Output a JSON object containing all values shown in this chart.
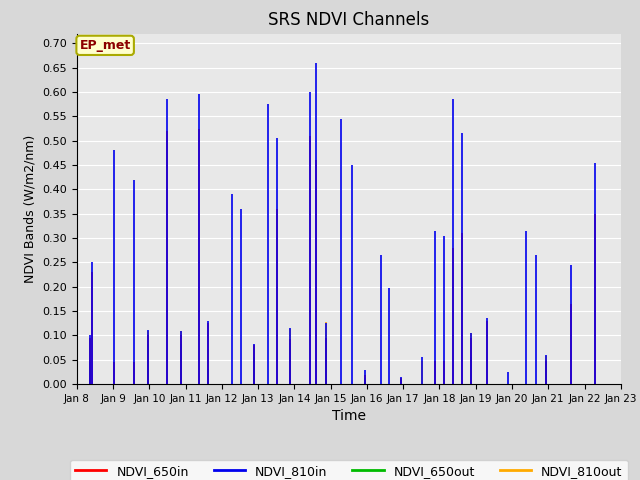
{
  "title": "SRS NDVI Channels",
  "xlabel": "Time",
  "ylabel": "NDVI Bands (W/m2/nm)",
  "ylim": [
    0.0,
    0.72
  ],
  "ylim_display": [
    0.0,
    0.7
  ],
  "yticks": [
    0.0,
    0.05,
    0.1,
    0.15,
    0.2,
    0.25,
    0.3,
    0.35,
    0.4,
    0.45,
    0.5,
    0.55,
    0.6,
    0.65,
    0.7
  ],
  "fig_bg_color": "#d8d8d8",
  "plot_bg_color": "#e8e8e8",
  "grid_color": "#ffffff",
  "annotation_text": "EP_met",
  "annotation_color": "#8b0000",
  "annotation_bg": "#ffffcc",
  "annotation_edge": "#aaaa00",
  "colors": {
    "NDVI_650in": "#ff0000",
    "NDVI_810in": "#0000ee",
    "NDVI_650out": "#00bb00",
    "NDVI_810out": "#ffaa00"
  },
  "spikes": [
    {
      "x": 8.37,
      "c650in": 0.095,
      "c810in": 0.1,
      "c650out": 0.045,
      "c810out": 0.092
    },
    {
      "x": 8.42,
      "c650in": 0.23,
      "c810in": 0.25,
      "c650out": 0.0,
      "c810out": 0.0
    },
    {
      "x": 9.02,
      "c650in": 0.045,
      "c810in": 0.48,
      "c650out": 0.0,
      "c810out": 0.0
    },
    {
      "x": 9.58,
      "c650in": 0.045,
      "c810in": 0.42,
      "c650out": 0.0,
      "c810out": 0.0
    },
    {
      "x": 9.95,
      "c650in": 0.1,
      "c810in": 0.11,
      "c650out": 0.082,
      "c810out": 0.108
    },
    {
      "x": 10.48,
      "c650in": 0.52,
      "c810in": 0.585,
      "c650out": 0.0,
      "c810out": 0.0
    },
    {
      "x": 10.88,
      "c650in": 0.1,
      "c810in": 0.108,
      "c650out": 0.082,
      "c810out": 0.108
    },
    {
      "x": 11.38,
      "c650in": 0.525,
      "c810in": 0.595,
      "c650out": 0.0,
      "c810out": 0.0
    },
    {
      "x": 11.62,
      "c650in": 0.125,
      "c810in": 0.13,
      "c650out": 0.03,
      "c810out": 0.072
    },
    {
      "x": 12.28,
      "c650in": 0.0,
      "c810in": 0.39,
      "c650out": 0.0,
      "c810out": 0.0
    },
    {
      "x": 12.52,
      "c650in": 0.0,
      "c810in": 0.36,
      "c650out": 0.0,
      "c810out": 0.0
    },
    {
      "x": 12.88,
      "c650in": 0.08,
      "c810in": 0.082,
      "c650out": 0.055,
      "c810out": 0.078
    },
    {
      "x": 13.28,
      "c650in": 0.0,
      "c810in": 0.575,
      "c650out": 0.0,
      "c810out": 0.0
    },
    {
      "x": 13.52,
      "c650in": 0.36,
      "c810in": 0.505,
      "c650out": 0.0,
      "c810out": 0.0
    },
    {
      "x": 13.88,
      "c650in": 0.092,
      "c810in": 0.115,
      "c650out": 0.085,
      "c810out": 0.112
    },
    {
      "x": 14.42,
      "c650in": 0.51,
      "c810in": 0.6,
      "c650out": 0.0,
      "c810out": 0.0
    },
    {
      "x": 14.6,
      "c650in": 0.46,
      "c810in": 0.66,
      "c650out": 0.0,
      "c810out": 0.0
    },
    {
      "x": 14.88,
      "c650in": 0.095,
      "c810in": 0.125,
      "c650out": 0.095,
      "c810out": 0.128
    },
    {
      "x": 15.28,
      "c650in": 0.0,
      "c810in": 0.545,
      "c650out": 0.0,
      "c810out": 0.0
    },
    {
      "x": 15.58,
      "c650in": 0.0,
      "c810in": 0.45,
      "c650out": 0.0,
      "c810out": 0.0
    },
    {
      "x": 15.95,
      "c650in": 0.018,
      "c810in": 0.028,
      "c650out": 0.012,
      "c810out": 0.018
    },
    {
      "x": 16.38,
      "c650in": 0.0,
      "c810in": 0.265,
      "c650out": 0.0,
      "c810out": 0.0
    },
    {
      "x": 16.62,
      "c650in": 0.0,
      "c810in": 0.198,
      "c650out": 0.0,
      "c810out": 0.0
    },
    {
      "x": 16.95,
      "c650in": 0.012,
      "c810in": 0.015,
      "c650out": 0.01,
      "c810out": 0.012
    },
    {
      "x": 17.52,
      "c650in": 0.0,
      "c810in": 0.055,
      "c650out": 0.0,
      "c810out": 0.048
    },
    {
      "x": 17.88,
      "c650in": 0.048,
      "c810in": 0.315,
      "c650out": 0.0,
      "c810out": 0.0
    },
    {
      "x": 18.12,
      "c650in": 0.048,
      "c810in": 0.305,
      "c650out": 0.0,
      "c810out": 0.0
    },
    {
      "x": 18.38,
      "c650in": 0.28,
      "c810in": 0.585,
      "c650out": 0.0,
      "c810out": 0.0
    },
    {
      "x": 18.62,
      "c650in": 0.31,
      "c810in": 0.515,
      "c650out": 0.0,
      "c810out": 0.0
    },
    {
      "x": 18.88,
      "c650in": 0.095,
      "c810in": 0.105,
      "c650out": 0.055,
      "c810out": 0.105
    },
    {
      "x": 19.32,
      "c650in": 0.13,
      "c810in": 0.135,
      "c650out": 0.0,
      "c810out": 0.0
    },
    {
      "x": 19.88,
      "c650in": 0.0,
      "c810in": 0.025,
      "c650out": 0.0,
      "c810out": 0.0
    },
    {
      "x": 20.38,
      "c650in": 0.0,
      "c810in": 0.315,
      "c650out": 0.0,
      "c810out": 0.0
    },
    {
      "x": 20.65,
      "c650in": 0.0,
      "c810in": 0.265,
      "c650out": 0.0,
      "c810out": 0.0
    },
    {
      "x": 20.95,
      "c650in": 0.048,
      "c810in": 0.06,
      "c650out": 0.045,
      "c810out": 0.058
    },
    {
      "x": 21.62,
      "c650in": 0.165,
      "c810in": 0.245,
      "c650out": 0.0,
      "c810out": 0.0
    },
    {
      "x": 22.28,
      "c650in": 0.35,
      "c810in": 0.455,
      "c650out": 0.0,
      "c810out": 0.0
    },
    {
      "x": 22.72,
      "c650in": 0.0,
      "c810in": 0.0,
      "c650out": 0.0,
      "c810out": 0.0
    }
  ],
  "xstart": 8,
  "xend": 23,
  "xtick_days": [
    8,
    9,
    10,
    11,
    12,
    13,
    14,
    15,
    16,
    17,
    18,
    19,
    20,
    21,
    22,
    23
  ],
  "xtick_labels": [
    "Jan 8",
    "Jan 9",
    "Jan 10",
    "Jan 11",
    "Jan 12",
    "Jan 13",
    "Jan 14",
    "Jan 15",
    "Jan 16",
    "Jan 17",
    "Jan 18",
    "Jan 19",
    "Jan 20",
    "Jan 21",
    "Jan 22",
    "Jan 23"
  ]
}
